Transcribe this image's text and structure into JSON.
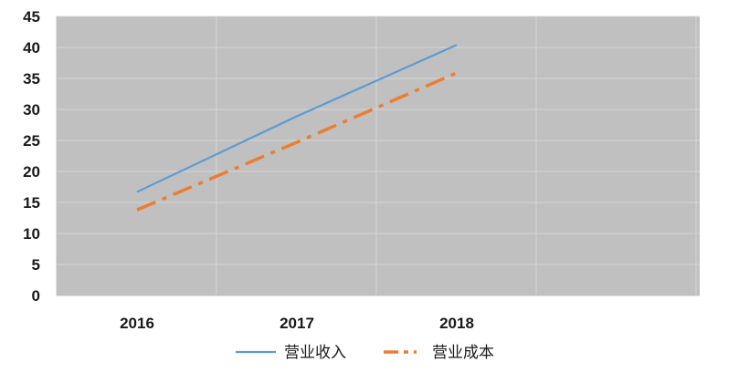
{
  "chart_data": {
    "type": "line",
    "title": "",
    "xlabel": "",
    "ylabel": "",
    "categories": [
      "2016",
      "2017",
      "2018"
    ],
    "x_tick_labels": [
      "2016",
      "2017",
      "2018"
    ],
    "y_tick_labels": [
      "0",
      "5",
      "10",
      "15",
      "20",
      "25",
      "30",
      "35",
      "40",
      "45"
    ],
    "ylim": [
      0,
      45
    ],
    "grid": true,
    "plot_background": "#c0c0c0",
    "legend_position": "bottom",
    "series": [
      {
        "name": "营业收入",
        "values": [
          16.7,
          28.9,
          40.4
        ],
        "color": "#5b9bd5",
        "style": "solid"
      },
      {
        "name": "营业成本",
        "values": [
          13.8,
          24.7,
          35.9
        ],
        "color": "#ed7d31",
        "style": "dash-dot"
      }
    ]
  }
}
